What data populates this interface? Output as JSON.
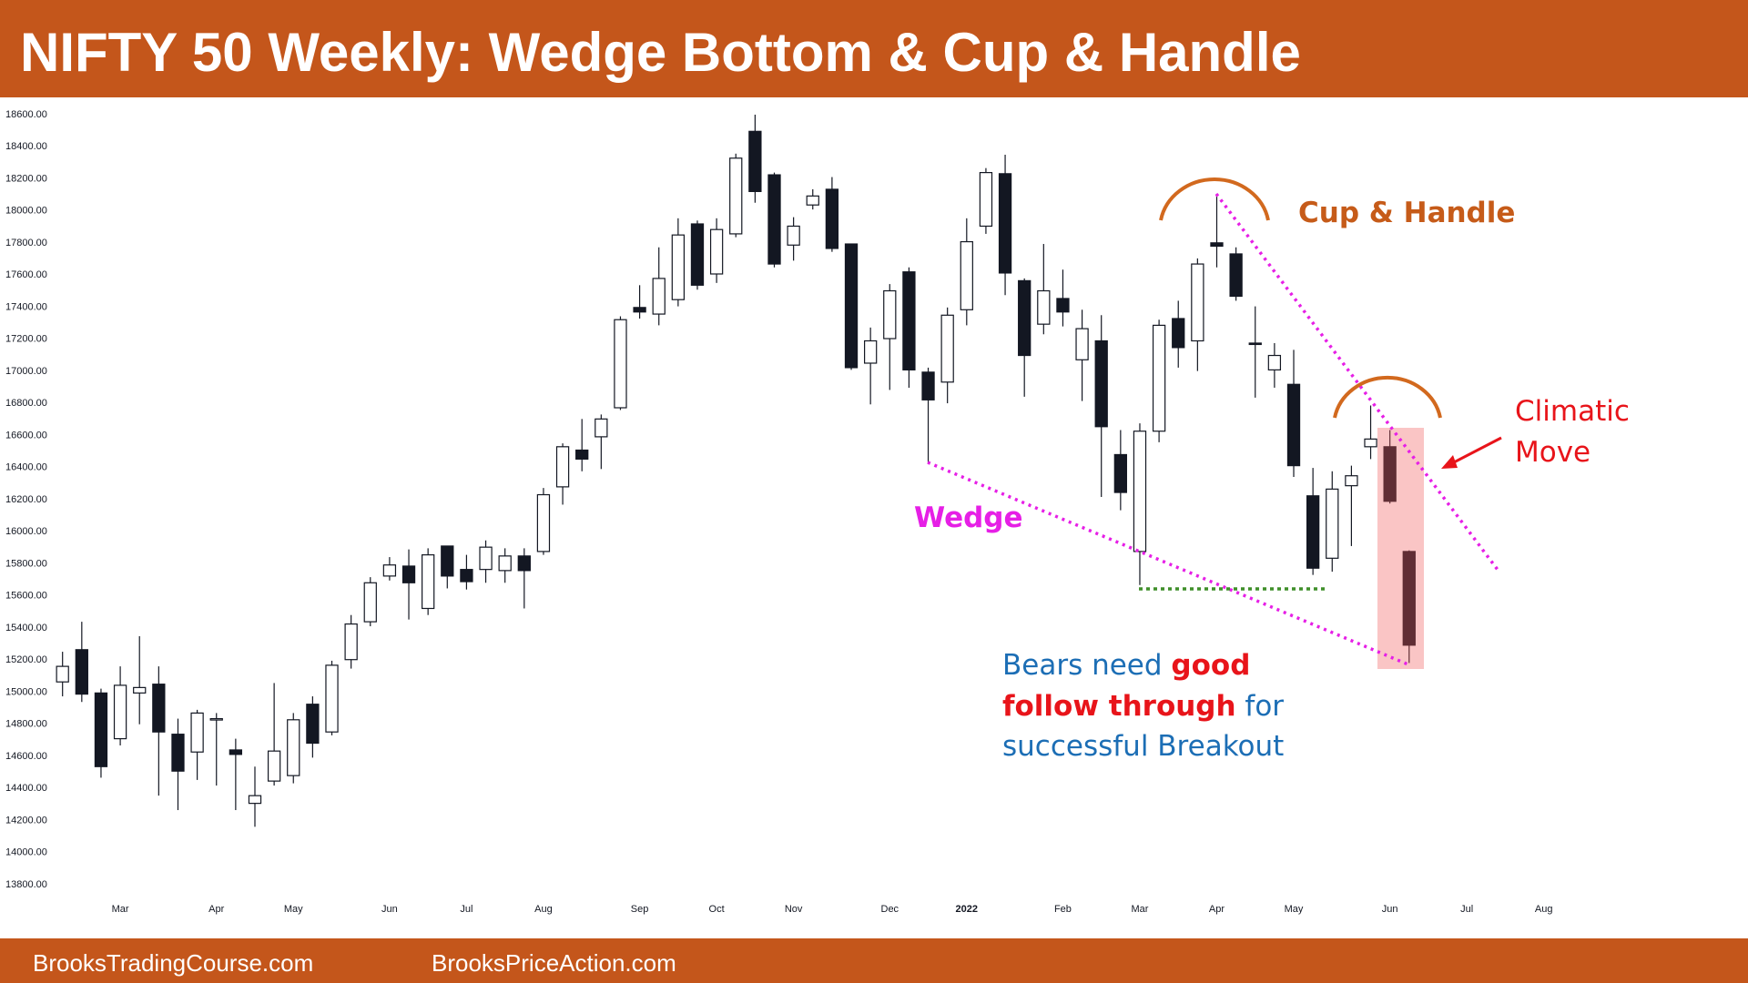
{
  "header": {
    "title": "NIFTY 50 Weekly: Wedge Bottom & Cup & Handle"
  },
  "chart_data": {
    "type": "candlestick",
    "x": [
      0,
      1,
      2,
      3,
      4,
      5,
      6,
      7,
      8,
      9,
      10,
      11,
      12,
      13,
      14,
      15,
      16,
      17,
      18,
      19,
      20,
      21,
      22,
      23,
      24,
      25,
      26,
      27,
      28,
      29,
      30,
      31,
      32,
      33,
      34,
      35,
      36,
      37,
      38,
      39,
      40,
      41,
      42,
      43,
      44,
      45,
      46,
      47,
      48,
      49,
      50,
      51,
      52,
      53,
      54,
      55,
      56,
      57,
      58,
      59,
      60,
      61,
      62,
      63,
      64,
      65,
      66,
      67,
      68,
      69,
      70
    ],
    "open": [
      15064,
      15265,
      14995,
      14710,
      14995,
      15050,
      14738,
      14627,
      14835,
      14640,
      14307,
      14446,
      14480,
      14925,
      14752,
      15203,
      15439,
      15724,
      15786,
      15522,
      15911,
      15765,
      15765,
      15758,
      15849,
      15877,
      16280,
      16509,
      16592,
      16773,
      17398,
      17357,
      17447,
      17919,
      17607,
      17857,
      18496,
      18225,
      17787,
      18037,
      18135,
      17794,
      17051,
      17204,
      17620,
      16995,
      16933,
      17384,
      17905,
      18232,
      17565,
      17294,
      17454,
      17072,
      17190,
      16481,
      15877,
      16627,
      17329,
      17190,
      17801,
      17732,
      17176,
      17009,
      16919,
      16224,
      15835,
      16287,
      16530,
      16530,
      15877
    ],
    "high": [
      15252,
      15439,
      15022,
      15161,
      15349,
      15161,
      14835,
      14890,
      14870,
      14710,
      14536,
      15057,
      14870,
      14974,
      15196,
      15481,
      15717,
      15842,
      15890,
      15897,
      15911,
      15856,
      15946,
      15897,
      15897,
      16273,
      16551,
      16703,
      16731,
      17343,
      17537,
      17773,
      17954,
      17940,
      17954,
      18357,
      18600,
      18239,
      17961,
      18135,
      18211,
      17794,
      17273,
      17544,
      17648,
      17023,
      17398,
      17954,
      18267,
      18350,
      17579,
      17794,
      17634,
      17384,
      17350,
      16634,
      16676,
      17322,
      17440,
      17704,
      18107,
      17773,
      17405,
      17176,
      17134,
      16398,
      16377,
      16412,
      16787,
      16634,
      15884
    ],
    "low": [
      14974,
      14939,
      14467,
      14668,
      14800,
      14355,
      14265,
      14453,
      14418,
      14265,
      14161,
      14418,
      14432,
      14592,
      14731,
      15147,
      15411,
      15696,
      15453,
      15481,
      15647,
      15640,
      15682,
      15682,
      15522,
      15856,
      16169,
      16377,
      16391,
      16759,
      17329,
      17287,
      17405,
      17509,
      17551,
      17836,
      18051,
      17648,
      17690,
      18009,
      17745,
      17009,
      16794,
      16884,
      16898,
      16426,
      16801,
      17287,
      17857,
      17475,
      16842,
      17231,
      17280,
      16815,
      16217,
      16134,
      15668,
      16558,
      17023,
      17002,
      17648,
      17440,
      16836,
      16898,
      16342,
      15731,
      15751,
      15911,
      16453,
      16176,
      15182
    ],
    "close": [
      15161,
      14988,
      14536,
      15043,
      15029,
      14752,
      14508,
      14870,
      14835,
      14612,
      14355,
      14633,
      14828,
      14682,
      15168,
      15425,
      15682,
      15793,
      15682,
      15856,
      15724,
      15689,
      15904,
      15849,
      15758,
      16231,
      16530,
      16453,
      16703,
      17322,
      17370,
      17579,
      17850,
      17537,
      17884,
      18329,
      18121,
      17669,
      17905,
      18093,
      17766,
      17023,
      17190,
      17502,
      17009,
      16822,
      17350,
      17808,
      18239,
      17613,
      17099,
      17502,
      17370,
      17266,
      16655,
      16245,
      16627,
      17287,
      17148,
      17669,
      17780,
      17468,
      17169,
      17099,
      16412,
      15773,
      16266,
      16349,
      16578,
      16190,
      15293
    ],
    "up_color": "#ffffff",
    "down_color": "#131722",
    "xlim": [
      -1.5,
      87
    ],
    "xticks": [
      {
        "value": 3,
        "label": "Mar"
      },
      {
        "value": 8,
        "label": "Apr"
      },
      {
        "value": 12,
        "label": "May"
      },
      {
        "value": 17,
        "label": "Jun"
      },
      {
        "value": 21,
        "label": "Jul"
      },
      {
        "value": 25,
        "label": "Aug"
      },
      {
        "value": 30,
        "label": "Sep"
      },
      {
        "value": 34,
        "label": "Oct"
      },
      {
        "value": 38,
        "label": "Nov"
      },
      {
        "value": 43,
        "label": "Dec"
      },
      {
        "value": 47,
        "label": "2022"
      },
      {
        "value": 52,
        "label": "Feb"
      },
      {
        "value": 56,
        "label": "Mar"
      },
      {
        "value": 60,
        "label": "Apr"
      },
      {
        "value": 64,
        "label": "May"
      },
      {
        "value": 69,
        "label": "Jun"
      },
      {
        "value": 73,
        "label": "Jul"
      },
      {
        "value": 77,
        "label": "Aug"
      }
    ],
    "ylim": [
      13750,
      18660
    ],
    "yticks": [
      {
        "value": 13800,
        "label": "13800.00"
      },
      {
        "value": 14000,
        "label": "14000.00"
      },
      {
        "value": 14200,
        "label": "14200.00"
      },
      {
        "value": 14400,
        "label": "14400.00"
      },
      {
        "value": 14600,
        "label": "14600.00"
      },
      {
        "value": 14800,
        "label": "14800.00"
      },
      {
        "value": 15000,
        "label": "15000.00"
      },
      {
        "value": 15200,
        "label": "15200.00"
      },
      {
        "value": 15400,
        "label": "15400.00"
      },
      {
        "value": 15600,
        "label": "15600.00"
      },
      {
        "value": 15800,
        "label": "15800.00"
      },
      {
        "value": 16000,
        "label": "16000.00"
      },
      {
        "value": 16200,
        "label": "16200.00"
      },
      {
        "value": 16400,
        "label": "16400.00"
      },
      {
        "value": 16600,
        "label": "16600.00"
      },
      {
        "value": 16800,
        "label": "16800.00"
      },
      {
        "value": 17000,
        "label": "17000.00"
      },
      {
        "value": 17200,
        "label": "17200.00"
      },
      {
        "value": 17400,
        "label": "17400.00"
      },
      {
        "value": 17600,
        "label": "17600.00"
      },
      {
        "value": 17800,
        "label": "17800.00"
      },
      {
        "value": 18000,
        "label": "18000.00"
      },
      {
        "value": 18200,
        "label": "18200.00"
      },
      {
        "value": 18400,
        "label": "18400.00"
      },
      {
        "value": 18600,
        "label": "18600.00"
      }
    ],
    "annotations": {
      "cup_handle": "Cup & Handle",
      "wedge": "Wedge",
      "climatic": [
        "Climatic",
        "Move"
      ],
      "bears": [
        [
          "Bears need ",
          "good"
        ],
        [
          "follow through",
          " for"
        ],
        [
          "successful Breakout"
        ]
      ]
    }
  },
  "footer": {
    "left": "BrooksTradingCourse.com",
    "right": "BrooksPriceAction.com"
  }
}
